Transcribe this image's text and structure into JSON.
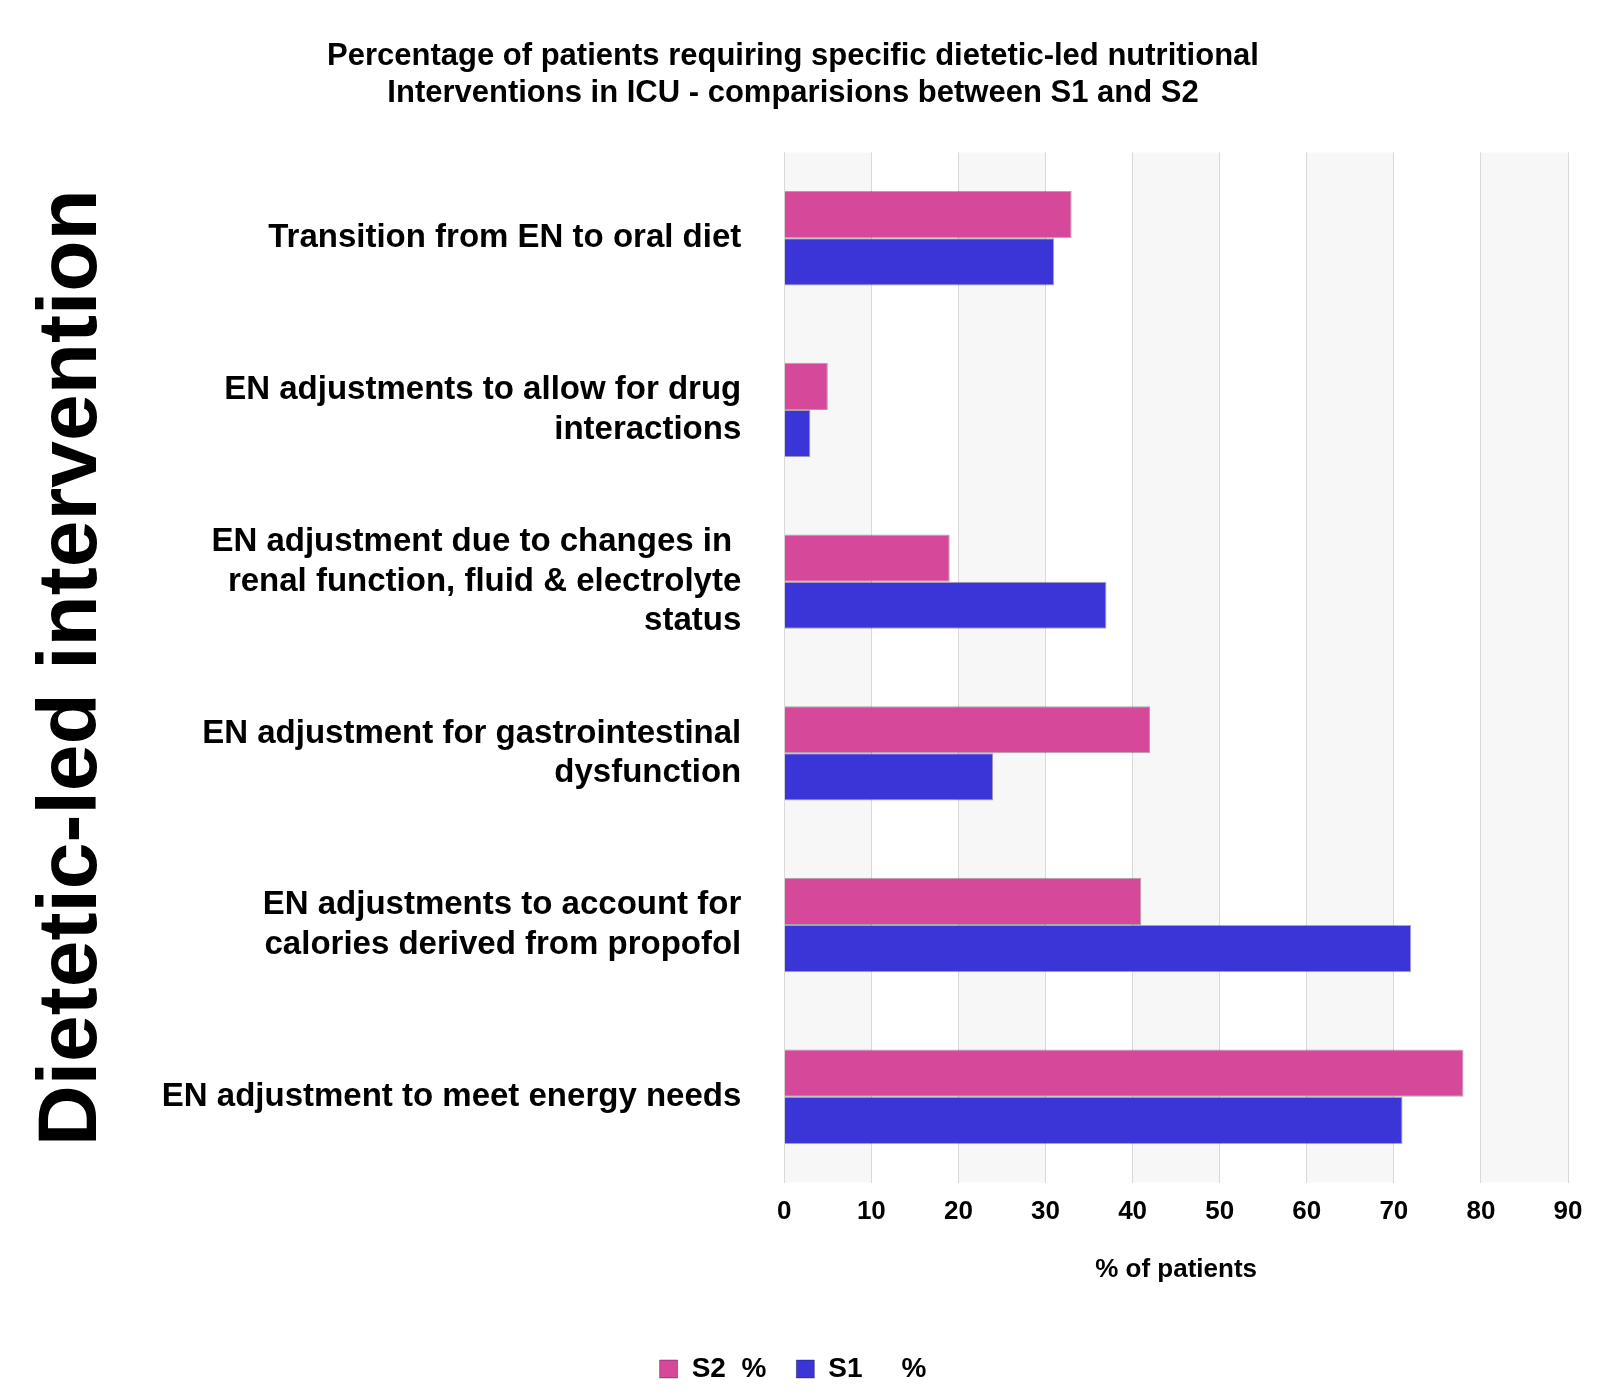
{
  "chart_data": {
    "type": "bar",
    "orientation": "horizontal",
    "title": "Percentage of patients requiring specific dietetic-led nutritional\nInterventions in ICU - comparisions between S1 and S2",
    "xlabel": "% of patients",
    "ylabel": "Dietetic-led intervention",
    "categories": [
      "Transition from EN to oral diet",
      "EN adjustments to allow for drug interactions",
      "EN adjustment due to changes in  renal function, fluid & electrolyte status",
      "EN adjustment for gastrointestinal dysfunction",
      "EN adjustments to account for calories derived from propofol",
      "EN adjustment to meet energy needs"
    ],
    "series": [
      {
        "name": "S2  %",
        "color": "#d6489a",
        "values": [
          33,
          5,
          19,
          42,
          41,
          78
        ]
      },
      {
        "name": "S1     %",
        "color": "#3b35d8",
        "values": [
          31,
          3,
          37,
          24,
          72,
          71
        ]
      }
    ],
    "xlim": [
      0,
      90
    ],
    "xticks": [
      0,
      10,
      20,
      30,
      40,
      50,
      60,
      70,
      80,
      90
    ],
    "grid": "x",
    "legend": "bottom"
  }
}
